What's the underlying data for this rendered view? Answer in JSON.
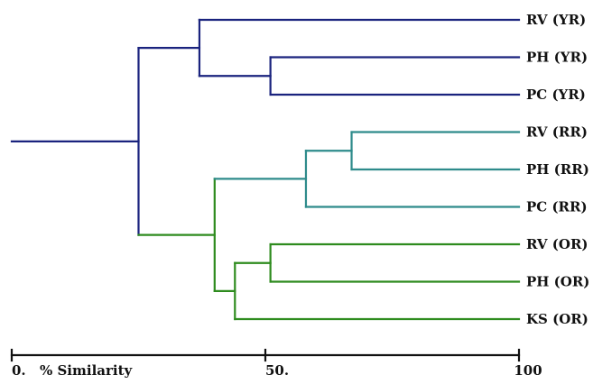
{
  "colors": {
    "yr_cluster": "#1a237e",
    "rr_cluster": "#2e8b8b",
    "or_cluster": "#2e8b1e",
    "axis": "#111111"
  },
  "axis": {
    "title": "% Similarity",
    "ticks": [
      {
        "value": 0,
        "label": "0."
      },
      {
        "value": 50,
        "label": "50."
      },
      {
        "value": 100,
        "label": "100"
      }
    ]
  },
  "leaves": [
    "RV (YR)",
    "PH (YR)",
    "PC (YR)",
    "RV (RR)",
    "PH (RR)",
    "PC (RR)",
    "RV (OR)",
    "PH (OR)",
    "KS (OR)"
  ],
  "merges": [
    {
      "id": "A",
      "children": [
        "L1",
        "L2"
      ],
      "similarity": 51,
      "color": "yr_cluster"
    },
    {
      "id": "B",
      "children": [
        "L0",
        "A"
      ],
      "similarity": 37,
      "color": "yr_cluster"
    },
    {
      "id": "C",
      "children": [
        "L3",
        "L4"
      ],
      "similarity": 67,
      "color": "rr_cluster"
    },
    {
      "id": "D",
      "children": [
        "C",
        "L5"
      ],
      "similarity": 58,
      "color": "rr_cluster"
    },
    {
      "id": "E",
      "children": [
        "L6",
        "L7"
      ],
      "similarity": 51,
      "color": "or_cluster"
    },
    {
      "id": "F",
      "children": [
        "E",
        "L8"
      ],
      "similarity": 44,
      "color": "or_cluster"
    },
    {
      "id": "G",
      "children": [
        "D",
        "F"
      ],
      "similarity": 40,
      "color": "or_cluster"
    },
    {
      "id": "H",
      "children": [
        "B",
        "G"
      ],
      "similarity": 25,
      "color": "yr_cluster"
    }
  ],
  "root_stub": {
    "similarity": 0,
    "color": "yr_cluster"
  }
}
